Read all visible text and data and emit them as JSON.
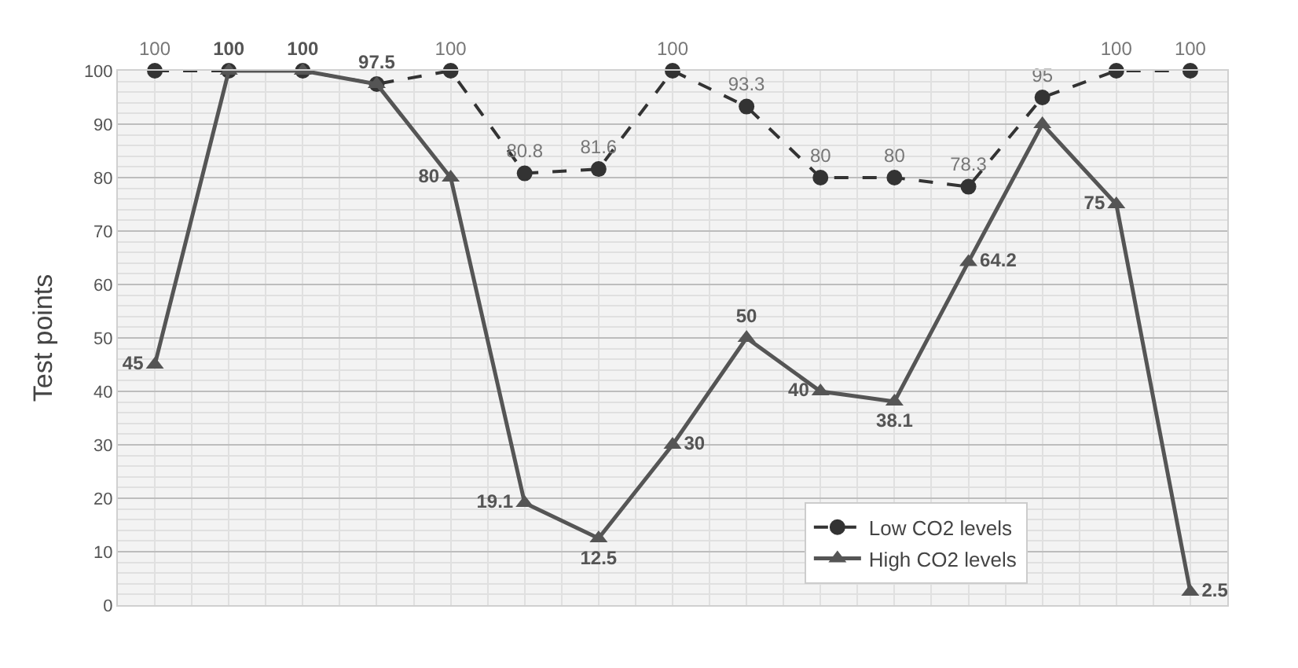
{
  "chart_data": {
    "type": "line",
    "ylabel": "Test points",
    "categories": [
      null,
      null,
      null,
      null,
      null,
      null,
      null,
      null,
      null,
      null,
      null,
      null,
      null,
      null,
      null
    ],
    "ylim": [
      0,
      100
    ],
    "yticks": [
      0,
      10,
      20,
      30,
      40,
      50,
      60,
      70,
      80,
      90,
      100
    ],
    "grid": true,
    "legend": "bottom right",
    "series": [
      {
        "name": "Low CO2 levels",
        "color": "#333333",
        "marker": "circle",
        "line_style": "dashed",
        "values": [
          100,
          100,
          100,
          97.5,
          100,
          80.8,
          81.6,
          100,
          93.3,
          80,
          80,
          78.3,
          95,
          100,
          100
        ],
        "value_labels": [
          "100",
          null,
          null,
          null,
          "100",
          "80.8",
          "81.6",
          "100",
          "93.3",
          "80",
          "80",
          "78.3",
          "95",
          "100",
          "100"
        ]
      },
      {
        "name": "High CO2 levels",
        "color": "#555555",
        "marker": "triangle",
        "line_style": "solid",
        "values": [
          45,
          100,
          100,
          97.5,
          80,
          19.1,
          12.5,
          30,
          50,
          40,
          38.1,
          64.2,
          90,
          75,
          2.5
        ],
        "value_labels": [
          "45",
          "100",
          "100",
          "97.5",
          "80",
          "19.1",
          "12.5",
          "30",
          "50",
          "40",
          "38.1",
          "64.2",
          null,
          "75",
          "2.5"
        ]
      }
    ]
  }
}
